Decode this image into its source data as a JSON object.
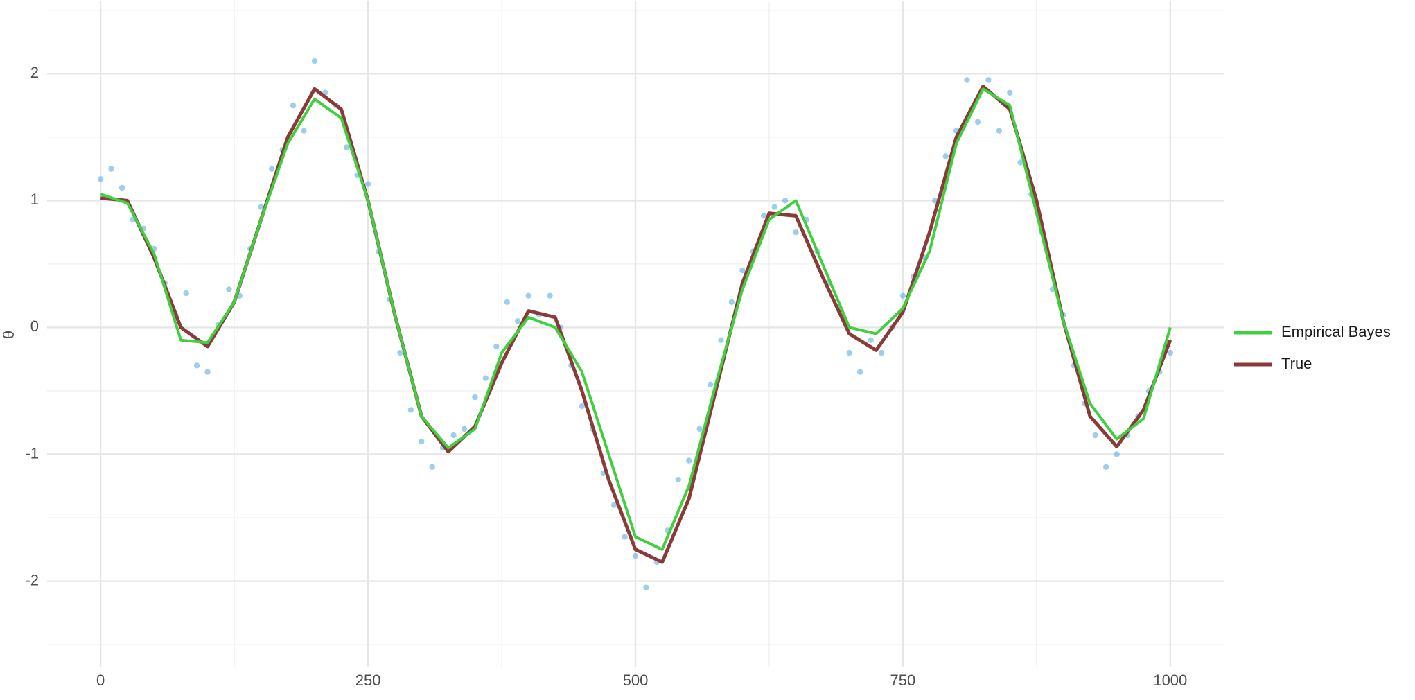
{
  "chart_data": {
    "type": "line",
    "y_label": "θ",
    "xlim": [
      -50,
      1050
    ],
    "ylim": [
      -2.68,
      2.57
    ],
    "xticks": [
      0,
      250,
      500,
      750,
      1000
    ],
    "yticks": [
      -2,
      -1,
      0,
      1,
      2
    ],
    "grid": true,
    "legend": "right",
    "x": [
      0,
      25,
      50,
      75,
      100,
      125,
      150,
      175,
      200,
      225,
      250,
      275,
      300,
      325,
      350,
      375,
      400,
      425,
      450,
      475,
      500,
      525,
      550,
      575,
      600,
      625,
      650,
      675,
      700,
      725,
      750,
      775,
      800,
      825,
      850,
      875,
      900,
      925,
      950,
      975,
      1000
    ],
    "series": [
      {
        "name": "Empirical Bayes",
        "color": "#3fcf3f",
        "values": [
          1.05,
          0.98,
          0.58,
          -0.1,
          -0.12,
          0.2,
          0.85,
          1.45,
          1.8,
          1.65,
          1.0,
          0.1,
          -0.7,
          -0.95,
          -0.8,
          -0.2,
          0.08,
          0.0,
          -0.35,
          -1.0,
          -1.65,
          -1.75,
          -1.25,
          -0.45,
          0.3,
          0.85,
          1.0,
          0.5,
          0.0,
          -0.05,
          0.15,
          0.6,
          1.45,
          1.88,
          1.75,
          0.9,
          0.05,
          -0.6,
          -0.88,
          -0.72,
          0.0
        ]
      },
      {
        "name": "True",
        "color": "#8b3a3a",
        "values": [
          1.02,
          1.0,
          0.55,
          0.0,
          -0.15,
          0.2,
          0.85,
          1.5,
          1.88,
          1.72,
          1.0,
          0.1,
          -0.7,
          -0.98,
          -0.78,
          -0.28,
          0.13,
          0.08,
          -0.5,
          -1.2,
          -1.75,
          -1.85,
          -1.35,
          -0.5,
          0.35,
          0.9,
          0.88,
          0.4,
          -0.05,
          -0.18,
          0.12,
          0.75,
          1.5,
          1.9,
          1.72,
          1.0,
          0.05,
          -0.7,
          -0.94,
          -0.65,
          -0.1
        ]
      }
    ],
    "points": {
      "color": "#5dade2",
      "x": [
        0,
        10,
        20,
        30,
        40,
        50,
        60,
        70,
        80,
        90,
        100,
        110,
        120,
        130,
        140,
        150,
        160,
        170,
        180,
        190,
        200,
        210,
        220,
        230,
        240,
        250,
        260,
        270,
        280,
        290,
        300,
        310,
        320,
        330,
        340,
        350,
        360,
        370,
        380,
        390,
        400,
        410,
        420,
        430,
        440,
        450,
        460,
        470,
        480,
        490,
        500,
        510,
        520,
        530,
        540,
        550,
        560,
        570,
        580,
        590,
        600,
        610,
        620,
        630,
        640,
        650,
        660,
        670,
        680,
        690,
        700,
        710,
        720,
        730,
        740,
        750,
        760,
        770,
        780,
        790,
        800,
        810,
        820,
        830,
        840,
        850,
        860,
        870,
        880,
        890,
        900,
        910,
        920,
        930,
        940,
        950,
        960,
        970,
        980,
        990,
        1000
      ],
      "values": [
        1.17,
        1.25,
        1.1,
        0.85,
        0.78,
        0.62,
        0.35,
        0.1,
        0.27,
        -0.3,
        -0.35,
        0.02,
        0.3,
        0.25,
        0.62,
        0.95,
        1.25,
        1.4,
        1.75,
        1.55,
        2.1,
        1.85,
        1.75,
        1.42,
        1.2,
        1.13,
        0.6,
        0.22,
        -0.2,
        -0.65,
        -0.9,
        -1.1,
        -0.95,
        -0.85,
        -0.8,
        -0.55,
        -0.4,
        -0.15,
        0.2,
        0.05,
        0.25,
        0.1,
        0.25,
        0.0,
        -0.3,
        -0.62,
        -0.8,
        -1.15,
        -1.4,
        -1.65,
        -1.8,
        -2.05,
        -1.85,
        -1.6,
        -1.2,
        -1.05,
        -0.8,
        -0.45,
        -0.1,
        0.2,
        0.45,
        0.6,
        0.88,
        0.95,
        1.0,
        0.75,
        0.85,
        0.6,
        0.35,
        0.15,
        -0.2,
        -0.35,
        -0.1,
        -0.2,
        0.0,
        0.25,
        0.4,
        0.55,
        1.0,
        1.35,
        1.55,
        1.95,
        1.62,
        1.95,
        1.55,
        1.85,
        1.3,
        1.05,
        0.75,
        0.3,
        0.1,
        -0.3,
        -0.6,
        -0.85,
        -1.1,
        -1.0,
        -0.85,
        -0.7,
        -0.5,
        -0.35,
        -0.2
      ]
    }
  }
}
